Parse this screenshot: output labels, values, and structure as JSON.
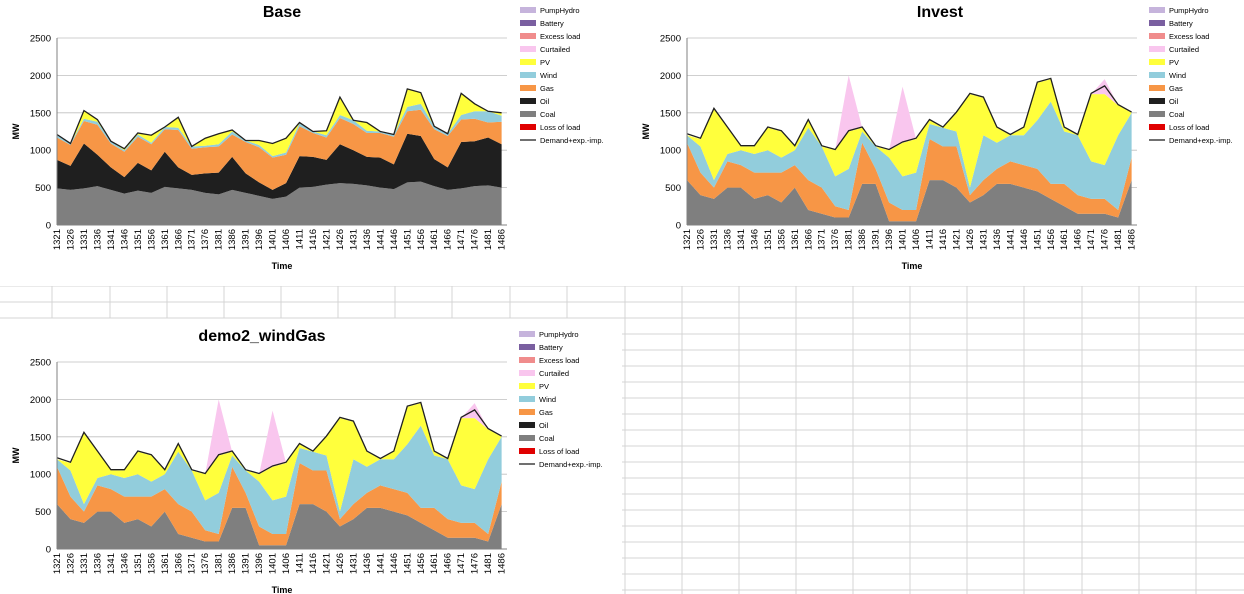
{
  "charts_common": {
    "ylim": [
      0,
      2500
    ],
    "yticks": [
      "0",
      "500",
      "1000",
      "1500",
      "2000",
      "2500"
    ],
    "x_start": 1321,
    "x_end": 1488,
    "xtick_labels": [
      "1321",
      "1326",
      "1331",
      "1336",
      "1341",
      "1346",
      "1351",
      "1356",
      "1361",
      "1366",
      "1371",
      "1376",
      "1381",
      "1386",
      "1391",
      "1396",
      "1401",
      "1406",
      "1411",
      "1416",
      "1421",
      "1426",
      "1431",
      "1436",
      "1441",
      "1446",
      "1451",
      "1456",
      "1461",
      "1466",
      "1471",
      "1476",
      "1481",
      "1486"
    ],
    "xlabel": "Time",
    "ylabel": "MW",
    "legend": [
      {
        "name": "PumpHydro",
        "color": "#c6b4dc",
        "kind": "box"
      },
      {
        "name": "Battery",
        "color": "#7a5fa0",
        "kind": "box"
      },
      {
        "name": "Excess load",
        "color": "#f08c8c",
        "kind": "box"
      },
      {
        "name": "Curtailed",
        "color": "#f9c6ee",
        "kind": "box"
      },
      {
        "name": "PV",
        "color": "#ffff3c",
        "kind": "box"
      },
      {
        "name": "Wind",
        "color": "#92cddc",
        "kind": "box"
      },
      {
        "name": "Gas",
        "color": "#f79646",
        "kind": "box"
      },
      {
        "name": "Oil",
        "color": "#1f1f1f",
        "kind": "box"
      },
      {
        "name": "Coal",
        "color": "#7f7f7f",
        "kind": "box"
      },
      {
        "name": "Loss of load",
        "color": "#e00000",
        "kind": "box"
      },
      {
        "name": "Demand+exp.-imp.",
        "color": "#404040",
        "kind": "line"
      }
    ]
  },
  "chart_data": [
    {
      "type": "area",
      "title": "Base",
      "xlabel": "Time",
      "ylabel": "MW",
      "ylim": [
        0,
        2500
      ],
      "x": [
        1321,
        1326,
        1331,
        1336,
        1341,
        1346,
        1351,
        1356,
        1361,
        1366,
        1371,
        1376,
        1381,
        1386,
        1391,
        1396,
        1401,
        1406,
        1411,
        1416,
        1421,
        1426,
        1431,
        1436,
        1441,
        1446,
        1451,
        1456,
        1461,
        1466,
        1471,
        1476,
        1481,
        1486
      ],
      "series": [
        {
          "name": "Coal",
          "values": [
            490,
            470,
            490,
            520,
            470,
            420,
            460,
            430,
            510,
            490,
            470,
            430,
            410,
            470,
            430,
            390,
            350,
            380,
            500,
            510,
            540,
            560,
            550,
            530,
            500,
            480,
            570,
            580,
            520,
            470,
            490,
            520,
            530,
            500
          ]
        },
        {
          "name": "Oil",
          "values": [
            380,
            320,
            600,
            420,
            300,
            220,
            370,
            300,
            470,
            280,
            200,
            260,
            290,
            440,
            260,
            180,
            120,
            180,
            420,
            400,
            330,
            520,
            450,
            380,
            400,
            330,
            650,
            610,
            360,
            300,
            620,
            600,
            640,
            580
          ]
        },
        {
          "name": "Gas",
          "values": [
            300,
            280,
            300,
            400,
            320,
            340,
            350,
            350,
            300,
            500,
            350,
            350,
            350,
            300,
            420,
            470,
            430,
            380,
            400,
            320,
            300,
            350,
            350,
            320,
            330,
            370,
            300,
            350,
            400,
            420,
            300,
            300,
            200,
            300
          ]
        },
        {
          "name": "Wind",
          "values": [
            30,
            20,
            30,
            40,
            30,
            20,
            30,
            20,
            30,
            30,
            30,
            20,
            30,
            40,
            20,
            30,
            20,
            30,
            40,
            20,
            30,
            40,
            50,
            30,
            20,
            30,
            60,
            80,
            40,
            30,
            60,
            100,
            150,
            80
          ]
        },
        {
          "name": "PV",
          "values": [
            0,
            0,
            110,
            30,
            0,
            20,
            20,
            100,
            0,
            140,
            0,
            100,
            140,
            20,
            0,
            60,
            170,
            190,
            10,
            0,
            60,
            240,
            0,
            110,
            0,
            0,
            240,
            150,
            0,
            0,
            290,
            100,
            0,
            40
          ]
        },
        {
          "name": "Curtailed",
          "values": [
            0,
            0,
            0,
            0,
            0,
            0,
            0,
            0,
            0,
            0,
            0,
            0,
            0,
            0,
            0,
            0,
            0,
            0,
            0,
            0,
            0,
            0,
            0,
            0,
            0,
            0,
            0,
            0,
            0,
            0,
            0,
            0,
            0,
            0
          ]
        }
      ],
      "demand": [
        1210,
        1090,
        1530,
        1410,
        1120,
        1020,
        1230,
        1200,
        1310,
        1440,
        1050,
        1160,
        1220,
        1270,
        1130,
        1130,
        1090,
        1160,
        1370,
        1250,
        1260,
        1710,
        1400,
        1370,
        1250,
        1210,
        1820,
        1770,
        1320,
        1220,
        1760,
        1620,
        1520,
        1500
      ]
    },
    {
      "type": "area",
      "title": "Invest",
      "xlabel": "Time",
      "ylabel": "MW",
      "ylim": [
        0,
        2500
      ],
      "x": [
        1321,
        1326,
        1331,
        1336,
        1341,
        1346,
        1351,
        1356,
        1361,
        1366,
        1371,
        1376,
        1381,
        1386,
        1391,
        1396,
        1401,
        1406,
        1411,
        1416,
        1421,
        1426,
        1431,
        1436,
        1441,
        1446,
        1451,
        1456,
        1461,
        1466,
        1471,
        1476,
        1481,
        1486
      ],
      "series": [
        {
          "name": "Coal",
          "values": [
            600,
            400,
            350,
            500,
            500,
            350,
            400,
            300,
            500,
            200,
            150,
            100,
            100,
            550,
            550,
            50,
            50,
            50,
            600,
            600,
            500,
            300,
            400,
            550,
            550,
            500,
            450,
            350,
            250,
            150,
            150,
            150,
            100,
            600
          ]
        },
        {
          "name": "Gas",
          "values": [
            500,
            300,
            150,
            350,
            300,
            350,
            300,
            400,
            300,
            400,
            350,
            150,
            100,
            550,
            200,
            250,
            150,
            150,
            550,
            450,
            550,
            100,
            200,
            200,
            300,
            300,
            300,
            200,
            300,
            250,
            200,
            200,
            100,
            300
          ]
        },
        {
          "name": "Wind",
          "values": [
            100,
            350,
            100,
            100,
            200,
            250,
            300,
            200,
            200,
            700,
            550,
            400,
            550,
            150,
            300,
            600,
            450,
            500,
            200,
            250,
            200,
            100,
            600,
            350,
            350,
            400,
            650,
            1100,
            700,
            800,
            500,
            450,
            1000,
            600
          ]
        },
        {
          "name": "PV",
          "values": [
            0,
            100,
            950,
            350,
            50,
            100,
            300,
            350,
            50,
            100,
            0,
            350,
            500,
            50,
            0,
            100,
            450,
            450,
            50,
            0,
            250,
            1250,
            500,
            200,
            0,
            100,
            500,
            300,
            50,
            0,
            900,
            950,
            400,
            0
          ]
        },
        {
          "name": "Curtailed",
          "values": [
            0,
            0,
            0,
            0,
            0,
            0,
            0,
            0,
            0,
            0,
            0,
            0,
            750,
            0,
            0,
            0,
            750,
            0,
            0,
            0,
            0,
            0,
            0,
            0,
            0,
            0,
            0,
            0,
            0,
            0,
            0,
            200,
            0,
            0
          ]
        }
      ],
      "demand": [
        1220,
        1160,
        1560,
        1310,
        1060,
        1060,
        1310,
        1260,
        1060,
        1410,
        1060,
        1010,
        1260,
        1310,
        1060,
        1010,
        1110,
        1160,
        1410,
        1310,
        1510,
        1760,
        1710,
        1310,
        1210,
        1310,
        1910,
        1960,
        1310,
        1210,
        1760,
        1860,
        1610,
        1510
      ]
    },
    {
      "type": "area",
      "title": "demo2_windGas",
      "xlabel": "Time",
      "ylabel": "MW",
      "ylim": [
        0,
        2500
      ],
      "x": [
        1321,
        1326,
        1331,
        1336,
        1341,
        1346,
        1351,
        1356,
        1361,
        1366,
        1371,
        1376,
        1381,
        1386,
        1391,
        1396,
        1401,
        1406,
        1411,
        1416,
        1421,
        1426,
        1431,
        1436,
        1441,
        1446,
        1451,
        1456,
        1461,
        1466,
        1471,
        1476,
        1481,
        1486
      ],
      "series": [
        {
          "name": "Coal",
          "values": [
            600,
            400,
            350,
            500,
            500,
            350,
            400,
            300,
            500,
            200,
            150,
            100,
            100,
            550,
            550,
            50,
            50,
            50,
            600,
            600,
            500,
            300,
            400,
            550,
            550,
            500,
            450,
            350,
            250,
            150,
            150,
            150,
            100,
            600
          ]
        },
        {
          "name": "Gas",
          "values": [
            500,
            300,
            150,
            350,
            300,
            350,
            300,
            400,
            300,
            400,
            350,
            150,
            100,
            550,
            200,
            250,
            150,
            150,
            550,
            450,
            550,
            100,
            200,
            200,
            300,
            300,
            300,
            200,
            300,
            250,
            200,
            200,
            100,
            300
          ]
        },
        {
          "name": "Wind",
          "values": [
            100,
            350,
            100,
            100,
            200,
            250,
            300,
            200,
            200,
            700,
            550,
            400,
            550,
            150,
            300,
            600,
            450,
            500,
            200,
            250,
            200,
            100,
            600,
            350,
            350,
            400,
            650,
            1100,
            700,
            800,
            500,
            450,
            1000,
            600
          ]
        },
        {
          "name": "PV",
          "values": [
            0,
            100,
            950,
            350,
            50,
            100,
            300,
            350,
            50,
            100,
            0,
            350,
            500,
            50,
            0,
            100,
            450,
            450,
            50,
            0,
            250,
            1250,
            500,
            200,
            0,
            100,
            500,
            300,
            50,
            0,
            900,
            950,
            400,
            0
          ]
        },
        {
          "name": "Curtailed",
          "values": [
            0,
            0,
            0,
            0,
            0,
            0,
            0,
            0,
            0,
            0,
            0,
            0,
            750,
            0,
            0,
            0,
            750,
            0,
            0,
            0,
            0,
            0,
            0,
            0,
            0,
            0,
            0,
            0,
            0,
            0,
            0,
            200,
            0,
            0
          ]
        }
      ],
      "demand": [
        1220,
        1160,
        1560,
        1310,
        1060,
        1060,
        1310,
        1260,
        1060,
        1410,
        1060,
        1010,
        1260,
        1310,
        1060,
        1010,
        1110,
        1160,
        1410,
        1310,
        1510,
        1760,
        1710,
        1310,
        1210,
        1310,
        1910,
        1960,
        1310,
        1210,
        1760,
        1860,
        1610,
        1510
      ]
    }
  ]
}
